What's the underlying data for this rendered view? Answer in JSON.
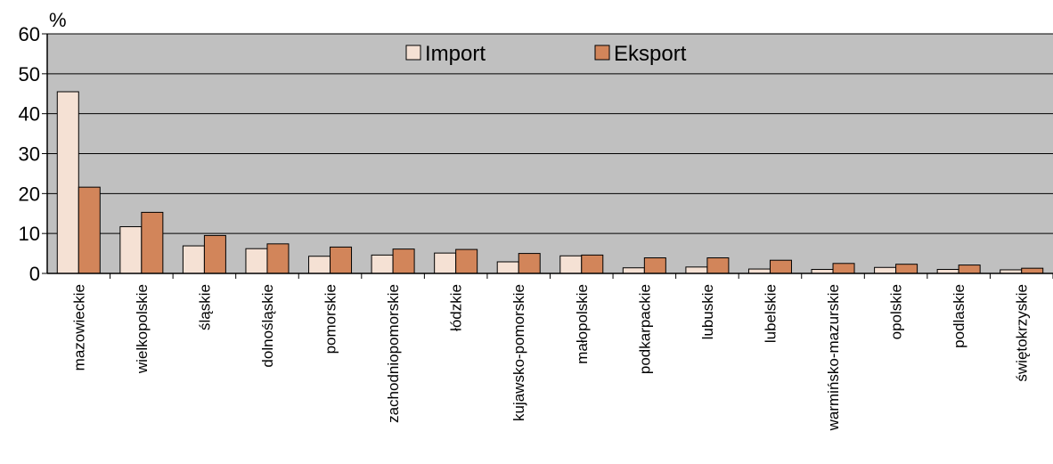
{
  "chart_data": {
    "type": "bar",
    "ylabel": "%",
    "ylim": [
      0,
      60
    ],
    "yticks": [
      0,
      10,
      20,
      30,
      40,
      50,
      60
    ],
    "grid": true,
    "legend_position": "top-center",
    "categories": [
      "mazowieckie",
      "wielkopolskie",
      "śląskie",
      "dolnośląskie",
      "pomorskie",
      "zachodniopomorskie",
      "łódzkie",
      "kujawsko-pomorskie",
      "małopolskie",
      "podkarpackie",
      "lubuskie",
      "lubelskie",
      "warmińsko-mazurskie",
      "opolskie",
      "podlaskie",
      "świętokrzyskie"
    ],
    "series": [
      {
        "name": "Import",
        "color": "#F5E1D4",
        "values": [
          45.5,
          11.7,
          6.9,
          6.2,
          4.3,
          4.6,
          5.1,
          2.9,
          4.4,
          1.4,
          1.6,
          1.1,
          1.0,
          1.5,
          1.0,
          0.9
        ]
      },
      {
        "name": "Eksport",
        "color": "#D2855A",
        "values": [
          21.6,
          15.3,
          9.5,
          7.4,
          6.6,
          6.1,
          6.0,
          5.0,
          4.6,
          3.9,
          3.9,
          3.3,
          2.5,
          2.3,
          2.1,
          1.3
        ]
      }
    ]
  },
  "colors": {
    "plot_background": "#C0C0C0",
    "gridline": "#000000"
  }
}
